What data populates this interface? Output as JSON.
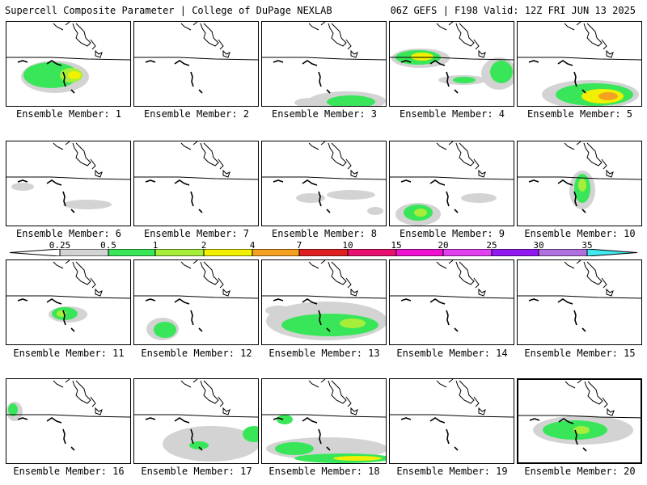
{
  "header": {
    "left": "Supercell Composite Parameter | College of DuPage NEXLAB",
    "right": "06Z GEFS | F198 Valid: 12Z FRI JUN 13 2025"
  },
  "colorbar": {
    "labels": [
      "0.25",
      "0.5",
      "1",
      "2",
      "4",
      "7",
      "10",
      "15",
      "20",
      "25",
      "30",
      "35"
    ],
    "colors": [
      "#d3d3d3",
      "#39e65a",
      "#a6ee3a",
      "#f0f000",
      "#f4a020",
      "#e02020",
      "#e8106e",
      "#f010d0",
      "#e040f0",
      "#9018f0",
      "#b070e0",
      "#40e8f0"
    ]
  },
  "members": [
    {
      "label": "Ensemble Member: 1"
    },
    {
      "label": "Ensemble Member: 2"
    },
    {
      "label": "Ensemble Member: 3"
    },
    {
      "label": "Ensemble Member: 4"
    },
    {
      "label": "Ensemble Member: 5"
    },
    {
      "label": "Ensemble Member: 6"
    },
    {
      "label": "Ensemble Member: 7"
    },
    {
      "label": "Ensemble Member: 8"
    },
    {
      "label": "Ensemble Member: 9"
    },
    {
      "label": "Ensemble Member: 10"
    },
    {
      "label": "Ensemble Member: 11"
    },
    {
      "label": "Ensemble Member: 12"
    },
    {
      "label": "Ensemble Member: 13"
    },
    {
      "label": "Ensemble Member: 14"
    },
    {
      "label": "Ensemble Member: 15"
    },
    {
      "label": "Ensemble Member: 16"
    },
    {
      "label": "Ensemble Member: 17"
    },
    {
      "label": "Ensemble Member: 18"
    },
    {
      "label": "Ensemble Member: 19"
    },
    {
      "label": "Ensemble Member: 20"
    }
  ]
}
